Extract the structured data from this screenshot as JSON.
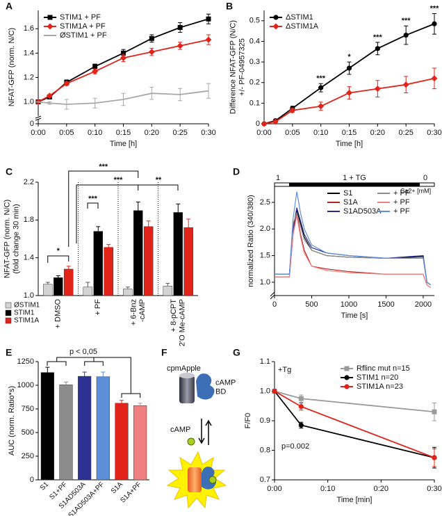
{
  "chart_data": [
    {
      "type": "line",
      "panel": "A",
      "ylabel": "NFAT-GFP (norm. N/C)",
      "xlabel": "Time [h]",
      "legend": "upper left",
      "x": [
        0,
        2,
        5,
        10,
        15,
        20,
        25,
        30
      ],
      "xlim": [
        0,
        30
      ],
      "xticks": [
        {
          "value": 0,
          "label": "0:00"
        },
        {
          "value": 5,
          "label": "0:05"
        },
        {
          "value": 10,
          "label": "0:10"
        },
        {
          "value": 15,
          "label": "0:15"
        },
        {
          "value": 20,
          "label": "0:20"
        },
        {
          "value": 25,
          "label": "0:25"
        },
        {
          "value": 30,
          "label": "0:30"
        }
      ],
      "ylim": [
        0,
        1.75
      ],
      "ybreak": [
        0,
        0.9
      ],
      "yticks": [
        0,
        {
          "value": 1,
          "label": "1.0"
        },
        1.2,
        1.4,
        1.6
      ],
      "series": [
        {
          "name": "STIM1 + PF",
          "color": "#000000",
          "marker": "square",
          "values": [
            1.0,
            1.04,
            1.16,
            1.29,
            1.4,
            1.52,
            1.61,
            1.68
          ],
          "errors": [
            0,
            0.01,
            0.02,
            0.02,
            0.03,
            0.03,
            0.04,
            0.04
          ]
        },
        {
          "name": "STIM1A + PF",
          "color": "#e2231a",
          "marker": "diamond",
          "values": [
            1.0,
            1.05,
            1.15,
            1.25,
            1.36,
            1.41,
            1.46,
            1.51
          ],
          "errors": [
            0,
            0.01,
            0.015,
            0.02,
            0.03,
            0.03,
            0.03,
            0.04
          ]
        },
        {
          "name": "ØSTIM1 + PF",
          "color": "#a8a8a8",
          "marker": "none",
          "values": [
            1.0,
            0.99,
            0.98,
            0.99,
            1.02,
            1.07,
            1.06,
            1.09
          ],
          "errors": [
            0,
            0.01,
            0.04,
            0.04,
            0.05,
            0.05,
            0.05,
            0.06
          ]
        }
      ]
    },
    {
      "type": "line",
      "panel": "B",
      "ylabel": "Difference NFAT-GFP (N/C)\n+/- PF-04957325",
      "xlabel": "Time [h]",
      "legend": "upper left",
      "x": [
        0,
        2,
        5,
        10,
        15,
        20,
        25,
        30
      ],
      "xlim": [
        0,
        30
      ],
      "xticks": [
        {
          "value": 0,
          "label": "0:00"
        },
        {
          "value": 5,
          "label": "0:05"
        },
        {
          "value": 10,
          "label": "0:10"
        },
        {
          "value": 15,
          "label": "0:15"
        },
        {
          "value": 20,
          "label": "0:20"
        },
        {
          "value": 25,
          "label": "0:25"
        },
        {
          "value": 30,
          "label": "0:30"
        }
      ],
      "ylim": [
        0,
        0.55
      ],
      "yticks": [
        0,
        0.1,
        0.2,
        0.3,
        0.4,
        0.5
      ],
      "series": [
        {
          "name": "ΔSTIM1",
          "color": "#000000",
          "marker": "circle",
          "values": [
            0,
            0.015,
            0.075,
            0.175,
            0.27,
            0.365,
            0.43,
            0.485
          ],
          "errors": [
            0,
            0.005,
            0.01,
            0.02,
            0.03,
            0.03,
            0.045,
            0.05
          ]
        },
        {
          "name": "ΔSTIM1A",
          "color": "#e2231a",
          "marker": "diamond",
          "values": [
            0,
            0.01,
            0.065,
            0.085,
            0.15,
            0.17,
            0.19,
            0.22
          ],
          "errors": [
            0,
            0.005,
            0.01,
            0.02,
            0.03,
            0.04,
            0.04,
            0.05
          ]
        }
      ],
      "annotations": [
        {
          "x": 10,
          "label": "***"
        },
        {
          "x": 15,
          "label": "*"
        },
        {
          "x": 20,
          "label": "***"
        },
        {
          "x": 25,
          "label": "***"
        },
        {
          "x": 30,
          "label": "***"
        }
      ]
    },
    {
      "type": "bar",
      "panel": "C",
      "ylabel": "NFAT-GFP (norm. N/C)\n(fold change 30 min)",
      "legend": "below left",
      "label_rotate": -90,
      "categories": [
        "+ DMSO",
        "+ PF",
        "+ 6-Bnz\n-cAMP",
        "+ 8-pCPT\n2'O Me-cAMP"
      ],
      "ylim": [
        1.0,
        2.2
      ],
      "yticks": [
        {
          "value": 1,
          "label": "1.0"
        },
        1.4,
        1.8,
        2.2
      ],
      "series": [
        {
          "name": "ØSTIM1",
          "color": "#d3d3d3",
          "values": [
            1.12,
            1.09,
            1.07,
            1.1
          ],
          "errors": [
            0.02,
            0.05,
            0.02,
            0.03
          ]
        },
        {
          "name": "STIM1",
          "color": "#000000",
          "values": [
            1.19,
            1.68,
            1.9,
            1.88
          ],
          "errors": [
            0.02,
            0.05,
            0.09,
            0.09
          ]
        },
        {
          "name": "STIM1A",
          "color": "#e2231a",
          "values": [
            1.28,
            1.51,
            1.73,
            1.72
          ],
          "errors": [
            0.03,
            0.03,
            0.06,
            0.09
          ]
        }
      ],
      "annotations": [
        {
          "label": "*"
        },
        {
          "label": "***"
        },
        {
          "label": "***"
        },
        {
          "label": "***"
        },
        {
          "label": "**"
        }
      ]
    },
    {
      "type": "line",
      "panel": "D",
      "ylabel": "normalized Ratio (340/380)",
      "xlabel": "Time [s]",
      "legend": "upper right",
      "x": [
        0,
        200,
        250,
        300,
        350,
        400,
        500,
        700,
        1000,
        1500,
        2000,
        2050,
        2100
      ],
      "xlim": [
        0,
        2150
      ],
      "xticks": [
        0,
        500,
        1000,
        1500,
        2000
      ],
      "ylim": [
        0.75,
        2.8
      ],
      "yticks": [
        {
          "value": 1,
          "label": "1.0"
        },
        1.5,
        {
          "value": 2,
          "label": "2.0"
        },
        2.5
      ],
      "series": [
        {
          "name": "S1",
          "color": "#000000",
          "values": [
            1.15,
            1.15,
            2.0,
            2.35,
            2.1,
            1.85,
            1.6,
            1.5,
            1.47,
            1.45,
            1.48,
            1.0,
            0.95
          ]
        },
        {
          "name": "S1A",
          "color": "#b3261e",
          "values": [
            1.1,
            1.1,
            1.9,
            2.3,
            1.9,
            1.6,
            1.3,
            1.25,
            1.2,
            1.15,
            1.15,
            0.95,
            0.9
          ]
        },
        {
          "name": "S1AD503A",
          "color": "#2b2a8c",
          "values": [
            1.15,
            1.15,
            2.0,
            2.4,
            2.15,
            1.9,
            1.65,
            1.55,
            1.5,
            1.45,
            1.5,
            1.0,
            0.95
          ]
        },
        {
          "name": "+ PF",
          "color": "#8c8c8c",
          "values": [
            1.15,
            1.15,
            2.1,
            2.3,
            2.05,
            1.8,
            1.6,
            1.5,
            1.47,
            1.45,
            1.45,
            1.0,
            0.95
          ]
        },
        {
          "name": "+ PF",
          "color": "#f08080",
          "values": [
            1.1,
            1.1,
            1.9,
            2.25,
            1.85,
            1.55,
            1.3,
            1.22,
            1.18,
            1.15,
            1.15,
            0.95,
            0.9
          ]
        },
        {
          "name": "+ PF",
          "color": "#5b8fd9",
          "values": [
            1.15,
            1.15,
            2.2,
            2.7,
            2.3,
            2.0,
            1.7,
            1.55,
            1.5,
            1.45,
            1.45,
            1.0,
            0.95
          ]
        }
      ],
      "annotations": [
        {
          "label": "1"
        },
        {
          "label": "1 + TG"
        },
        {
          "label": "0"
        },
        {
          "label": "Ca2+ [mM]"
        }
      ]
    },
    {
      "type": "bar",
      "panel": "E",
      "ylabel": "AUC (norm. Ratio*s)",
      "label_rotate": -45,
      "categories": [
        "S1",
        "S1+PF",
        "S1AD503A",
        "S1AD503A+PF",
        "S1A",
        "S1A+PF"
      ],
      "values": [
        1135,
        1005,
        1095,
        1090,
        810,
        785
      ],
      "errors": [
        55,
        30,
        45,
        50,
        30,
        25
      ],
      "colors": [
        "#000000",
        "#8c8c8c",
        "#2e3192",
        "#5b8fd9",
        "#e2231a",
        "#f08080"
      ],
      "ylim": [
        0,
        1250
      ],
      "yticks": [
        0,
        250,
        500,
        750,
        1000,
        1250
      ],
      "annotations": [
        {
          "label": "p < 0,05"
        }
      ]
    },
    {
      "type": "line",
      "panel": "G",
      "ylabel": "F/F0",
      "xlabel": "Time [min]",
      "legend": "upper right",
      "x": [
        0,
        5,
        30
      ],
      "xlim": [
        0,
        30
      ],
      "xticks": [
        {
          "value": 0,
          "label": "0:00"
        },
        {
          "value": 10,
          "label": "0:10"
        },
        {
          "value": 20,
          "label": "0:20"
        },
        {
          "value": 30,
          "label": "0:30"
        }
      ],
      "ylim": [
        0.7,
        1.1
      ],
      "yticks": [
        0.7,
        0.8,
        0.9,
        {
          "value": 1,
          "label": "1.0"
        },
        1.1
      ],
      "series": [
        {
          "name": "Rflinc mut n=15",
          "color": "#9a9a9a",
          "marker": "square",
          "values": [
            1.0,
            0.975,
            0.93
          ],
          "errors": [
            0,
            0.012,
            0.03
          ]
        },
        {
          "name": "STIM1 n=20",
          "color": "#000000",
          "marker": "circle",
          "values": [
            1.0,
            0.885,
            0.775
          ],
          "errors": [
            0,
            0.01,
            0.035
          ]
        },
        {
          "name": "STIM1A n=23",
          "color": "#e2231a",
          "marker": "circle",
          "values": [
            1.0,
            0.948,
            0.775
          ],
          "errors": [
            0,
            0.012,
            0.03
          ]
        }
      ],
      "annotations": [
        {
          "label": "+Tg"
        },
        {
          "label": "p=0.002"
        }
      ]
    }
  ],
  "diagram": {
    "panel": "F",
    "labels": [
      "cpmApple",
      "cAMP\nBD",
      "cAMP"
    ]
  }
}
